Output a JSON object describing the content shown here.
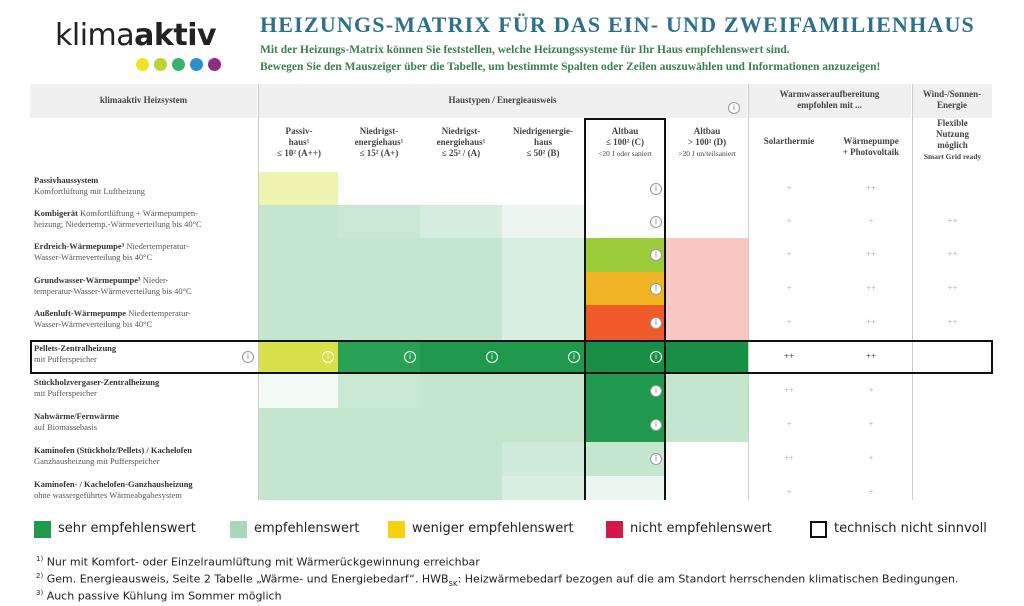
{
  "logo": {
    "light": "klima",
    "bold": "aktiv"
  },
  "header": {
    "title": "HEIZUNGS-MATRIX FÜR DAS EIN- UND ZWEIFAMILIENHAUS",
    "lines": [
      "Mit der Heizungs-Matrix können Sie feststellen, welche Heizungssysteme für Ihr Haus empfehlenswert sind.",
      "Bewegen Sie den Mauszeiger über die Tabelle, um bestimmte Spalten oder Zeilen auszuwählen und Informationen anzuzeigen!"
    ]
  },
  "table": {
    "groups": [
      [
        "klimaaktiv Heizsystem"
      ],
      [
        "Haustypen / Energieausweis"
      ],
      [
        "Warmwasseraufbereitung",
        "empfohlen mit ..."
      ],
      [
        "Wind-/Sonnen-",
        "Energie"
      ]
    ],
    "columns": [
      [
        "Passiv-",
        "haus¹",
        "≤ 10² (A++)"
      ],
      [
        "Niedrigst-",
        "energiehaus¹",
        "≤ 15² (A+)"
      ],
      [
        "Niedrigst-",
        "energiehaus¹",
        "≤ 25² / (A)"
      ],
      [
        "Niedrigenergie-",
        "haus",
        "≤ 50² (B)"
      ],
      [
        "Altbau",
        "≤ 100² (C)",
        "<20 J oder saniert"
      ],
      [
        "Altbau",
        "> 100² (D)",
        ">20 J un/teilsaniert"
      ]
    ],
    "extra_columns": [
      [
        "Solarthermie"
      ],
      [
        "Wärmepumpe",
        "+ Photovoltaik"
      ],
      [
        "Flexible",
        "Nutzung",
        "möglich",
        "Smart Grid ready"
      ]
    ],
    "rows": [
      {
        "title": "Passivhaussystem",
        "lines": [
          "Komfortlüftung mit Luftheizung"
        ],
        "fills": [
          "#eef3b0",
          "#ffffff",
          "#ffffff",
          "#ffffff",
          "#ffffff",
          "#ffffff"
        ],
        "info": [
          false,
          false,
          false,
          false,
          false,
          true,
          false
        ],
        "warm": [
          "+",
          "++"
        ],
        "flex": null
      },
      {
        "title": "Kombigerät",
        "inline": "Komfortlüftung + Wärmepumpen-",
        "lines": [
          "heizung; Niedertemp.-Wärmeverteilung bis 40°C"
        ],
        "fills": [
          "#c4e6cf",
          "#c9e8d3",
          "#d4edde",
          "#eaf6ef",
          "#ffffff",
          "#ffffff"
        ],
        "info": [
          false,
          false,
          false,
          false,
          false,
          true,
          false
        ],
        "warm": [
          "+",
          "+"
        ],
        "flex": "++"
      },
      {
        "title": "Erdreich-Wärmepumpe³",
        "inline": "Niedertemperatur-",
        "lines": [
          "Wasser-Wärmeverteilung bis 40°C"
        ],
        "fills": [
          "#c4e6cf",
          "#c4e6cf",
          "#c4e6cf",
          "#d9efe2",
          "#9ccc3c",
          "#f8c8c4"
        ],
        "info": [
          false,
          false,
          false,
          false,
          false,
          true,
          false
        ],
        "warm": [
          "+",
          "++"
        ],
        "flex": "++"
      },
      {
        "title": "Grundwasser-Wärmepumpe³",
        "inline": "Nieder-",
        "lines": [
          "temperatur-Wasser-Wärmeverteilung bis 40°C"
        ],
        "fills": [
          "#c4e6cf",
          "#c4e6cf",
          "#c4e6cf",
          "#d9efe2",
          "#f0b323",
          "#f8c8c4"
        ],
        "info": [
          false,
          false,
          false,
          false,
          false,
          true,
          false
        ],
        "warm": [
          "+",
          "++"
        ],
        "flex": "++"
      },
      {
        "title": "Außenluft-Wärmepumpe",
        "inline": "Niedertemperatur-",
        "lines": [
          "Wasser-Wärmeverteilung bis 40°C"
        ],
        "fills": [
          "#c4e6cf",
          "#c4e6cf",
          "#c4e6cf",
          "#d9efe2",
          "#ef5a2a",
          "#f8c8c4"
        ],
        "info": [
          false,
          false,
          false,
          false,
          false,
          true,
          false
        ],
        "warm": [
          "+",
          "++"
        ],
        "flex": "++"
      },
      {
        "title": "Pellets-Zentralheizung",
        "lines": [
          "mit Pufferspeicher"
        ],
        "fills": [
          "#d8e04a",
          "#2aa255",
          "#1f9a4c",
          "#1f9a4c",
          "#188f45",
          "#188f45"
        ],
        "info": [
          true,
          true,
          true,
          true,
          true,
          true,
          false
        ],
        "warm": [
          "++",
          "++"
        ],
        "flex": null
      },
      {
        "title": "Stückholzvergaser-Zentralheizung",
        "lines": [
          "mit Pufferspeicher"
        ],
        "fills": [
          "#f4faf6",
          "#c9e8d3",
          "#c4e6cf",
          "#c4e6cf",
          "#1f9a4c",
          "#c4e6cf"
        ],
        "info": [
          false,
          false,
          false,
          false,
          false,
          true,
          false
        ],
        "warm": [
          "++",
          "+"
        ],
        "flex": null
      },
      {
        "title": "Nahwärme/Fernwärme",
        "lines": [
          "auf Biomassebasis"
        ],
        "fills": [
          "#c4e6cf",
          "#c4e6cf",
          "#c4e6cf",
          "#c4e6cf",
          "#1f9a4c",
          "#c4e6cf"
        ],
        "info": [
          false,
          false,
          false,
          false,
          false,
          true,
          false
        ],
        "warm": [
          "+",
          "+"
        ],
        "flex": null
      },
      {
        "title": "Kaminofen (Stückholz/Pellets) / Kachelofen",
        "lines": [
          "Ganzhausheizung mit Pufferspeicher"
        ],
        "fills": [
          "#c4e6cf",
          "#c4e6cf",
          "#c4e6cf",
          "#cdeadb",
          "#c4e6cf",
          "#ffffff"
        ],
        "info": [
          false,
          false,
          false,
          false,
          false,
          true,
          false
        ],
        "warm": [
          "++",
          "+"
        ],
        "flex": null
      },
      {
        "title": "Kaminofen- / Kachelofen-Ganzhausheizung",
        "lines": [
          "ohne wassergeführtes Wärmeabgabesystem"
        ],
        "fills": [
          "#c4e6cf",
          "#c4e6cf",
          "#c4e6cf",
          "#d9efe2",
          "#eaf6ef",
          "#ffffff"
        ],
        "info": [
          false,
          false,
          false,
          false,
          false,
          false,
          false
        ],
        "warm": [
          "+",
          "+"
        ],
        "flex": null
      }
    ]
  },
  "legend": [
    {
      "label": "sehr empfehlenswert",
      "color": "#1f9a4c"
    },
    {
      "label": "empfehlenswert",
      "color": "#a8d8b9"
    },
    {
      "label": "weniger empfehlenswert",
      "color": "#f5d10f"
    },
    {
      "label": "nicht empfehlenswert",
      "color": "#d6174a"
    },
    {
      "label": "technisch nicht sinnvoll",
      "color": "#ffffff"
    }
  ],
  "footnotes": [
    {
      "mark": "1)",
      "text": "Nur mit Komfort- oder Einzelraumlüftung mit Wärmerückgewinnung erreichbar"
    },
    {
      "mark": "2)",
      "text": "Gem. Energieausweis, Seite 2 Tabelle „Wärme- und Energiebedarf“. HWB",
      "sub": "SK",
      "rest": ": Heizwärmebedarf bezogen auf die am Standort herrschenden klimatischen Bedingungen."
    },
    {
      "mark": "3)",
      "text": "Auch passive Kühlung im Sommer möglich"
    }
  ]
}
